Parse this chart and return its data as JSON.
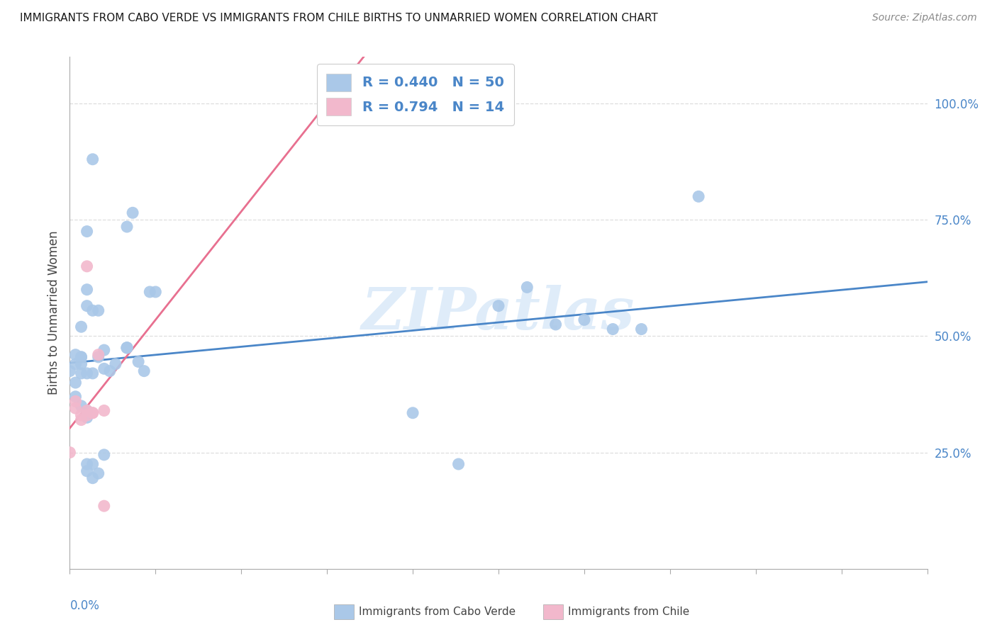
{
  "title": "IMMIGRANTS FROM CABO VERDE VS IMMIGRANTS FROM CHILE BIRTHS TO UNMARRIED WOMEN CORRELATION CHART",
  "source": "Source: ZipAtlas.com",
  "ylabel": "Births to Unmarried Women",
  "ylabel_right_ticks": [
    "25.0%",
    "50.0%",
    "75.0%",
    "100.0%"
  ],
  "ylabel_right_vals": [
    0.25,
    0.5,
    0.75,
    1.0
  ],
  "legend_blue_R": "0.440",
  "legend_blue_N": "50",
  "legend_pink_R": "0.794",
  "legend_pink_N": "14",
  "cabo_verde_color": "#aac8e8",
  "chile_color": "#f2b8cc",
  "cabo_verde_line_color": "#4a86c8",
  "chile_line_color": "#e87090",
  "cabo_verde_x": [
    0.0,
    0.001,
    0.001,
    0.001,
    0.001,
    0.002,
    0.002,
    0.002,
    0.002,
    0.002,
    0.002,
    0.003,
    0.003,
    0.003,
    0.003,
    0.003,
    0.003,
    0.003,
    0.003,
    0.004,
    0.004,
    0.004,
    0.004,
    0.004,
    0.005,
    0.005,
    0.005,
    0.006,
    0.006,
    0.006,
    0.007,
    0.008,
    0.01,
    0.01,
    0.01,
    0.01,
    0.011,
    0.012,
    0.013,
    0.014,
    0.015,
    0.06,
    0.068,
    0.075,
    0.08,
    0.085,
    0.09,
    0.095,
    0.1,
    0.11
  ],
  "cabo_verde_y": [
    0.425,
    0.37,
    0.4,
    0.44,
    0.46,
    0.35,
    0.42,
    0.44,
    0.455,
    0.455,
    0.52,
    0.21,
    0.225,
    0.325,
    0.34,
    0.42,
    0.565,
    0.6,
    0.725,
    0.195,
    0.225,
    0.42,
    0.555,
    0.88,
    0.205,
    0.455,
    0.555,
    0.245,
    0.43,
    0.47,
    0.425,
    0.44,
    0.475,
    0.475,
    0.475,
    0.735,
    0.765,
    0.445,
    0.425,
    0.595,
    0.595,
    0.335,
    0.225,
    0.565,
    0.605,
    0.525,
    0.535,
    0.515,
    0.515,
    0.8
  ],
  "chile_x": [
    0.0,
    0.001,
    0.001,
    0.002,
    0.002,
    0.003,
    0.003,
    0.003,
    0.004,
    0.004,
    0.005,
    0.006,
    0.006,
    0.045
  ],
  "chile_y": [
    0.25,
    0.345,
    0.36,
    0.32,
    0.33,
    0.33,
    0.34,
    0.65,
    0.335,
    0.335,
    0.46,
    0.135,
    0.34,
    1.02
  ],
  "xlim": [
    0.0,
    0.15
  ],
  "ylim": [
    0.0,
    1.1
  ],
  "x_ticks_count": 11,
  "watermark_text": "ZIPatlas",
  "background_color": "#ffffff",
  "grid_color": "#dedede",
  "title_color": "#1a1a1a",
  "source_color": "#888888",
  "axis_label_color": "#444444",
  "tick_color": "#4a86c8",
  "legend_text_color": "#4a86c8",
  "watermark_color": "#c5ddf5"
}
